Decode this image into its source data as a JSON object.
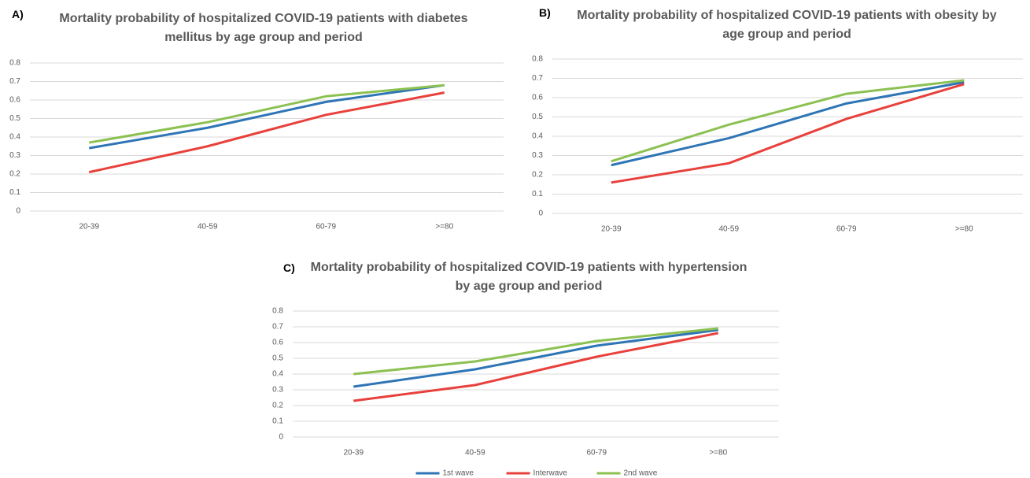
{
  "chart_data": [
    {
      "type": "line",
      "panel_label": "A)",
      "title": "Mortality probability of hospitalized COVID-19 patients with diabetes mellitus by age group and period",
      "categories": [
        "20-39",
        "40-59",
        "60-79",
        ">=80"
      ],
      "series": [
        {
          "color": "#2e75b6",
          "values": [
            0.34,
            0.45,
            0.59,
            0.68
          ]
        },
        {
          "color": "#e8413c",
          "values": [
            0.21,
            0.35,
            0.52,
            0.64
          ]
        },
        {
          "color": "#8cc152",
          "values": [
            0.37,
            0.48,
            0.62,
            0.68
          ]
        }
      ],
      "ylim": [
        0,
        0.8
      ],
      "yticks": [
        0,
        0.1,
        0.2,
        0.3,
        0.4,
        0.5,
        0.6,
        0.7,
        0.8
      ],
      "grid": true
    },
    {
      "type": "line",
      "panel_label": "B)",
      "title": "Mortality probability of hospitalized COVID-19 patients with obesity by age group and period",
      "categories": [
        "20-39",
        "40-59",
        "60-79",
        ">=80"
      ],
      "series": [
        {
          "color": "#2e75b6",
          "values": [
            0.25,
            0.39,
            0.57,
            0.68
          ]
        },
        {
          "color": "#e8413c",
          "values": [
            0.16,
            0.26,
            0.49,
            0.67
          ]
        },
        {
          "color": "#8cc152",
          "values": [
            0.27,
            0.46,
            0.62,
            0.69
          ]
        }
      ],
      "ylim": [
        0,
        0.8
      ],
      "yticks": [
        0,
        0.1,
        0.2,
        0.3,
        0.4,
        0.5,
        0.6,
        0.7,
        0.8
      ],
      "grid": true
    },
    {
      "type": "line",
      "panel_label": "C)",
      "title": "Mortality probability of hospitalized COVID-19 patients with hypertension by age group and period",
      "categories": [
        "20-39",
        "40-59",
        "60-79",
        ">=80"
      ],
      "series": [
        {
          "name": "1st wave",
          "color": "#2e75b6",
          "values": [
            0.32,
            0.43,
            0.58,
            0.68
          ]
        },
        {
          "name": "Interwave",
          "color": "#e8413c",
          "values": [
            0.23,
            0.33,
            0.51,
            0.66
          ]
        },
        {
          "name": "2nd wave",
          "color": "#8cc152",
          "values": [
            0.4,
            0.48,
            0.61,
            0.69
          ]
        }
      ],
      "ylim": [
        0,
        0.8
      ],
      "yticks": [
        0,
        0.1,
        0.2,
        0.3,
        0.4,
        0.5,
        0.6,
        0.7,
        0.8
      ],
      "grid": true,
      "legend": "bottom"
    }
  ]
}
